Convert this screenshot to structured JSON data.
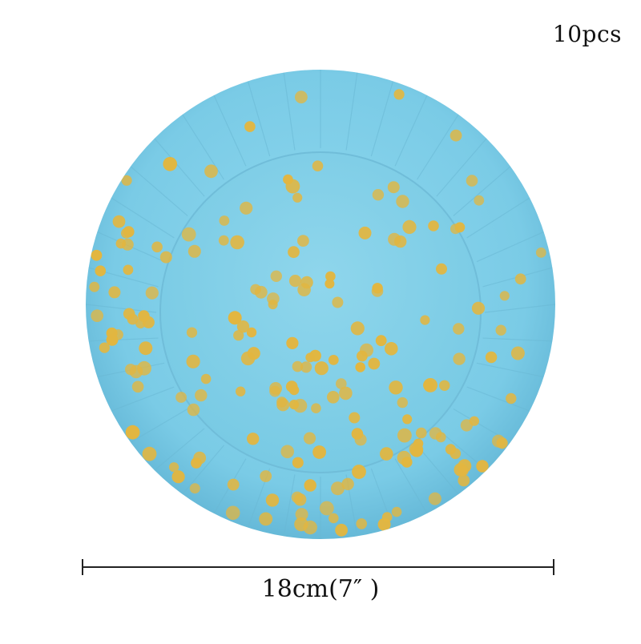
{
  "product": {
    "quantity_label": "10pcs",
    "size_label": "18cm(7″ )",
    "plate_color": "#7fd0ea",
    "dot_color": "#e2b640"
  }
}
